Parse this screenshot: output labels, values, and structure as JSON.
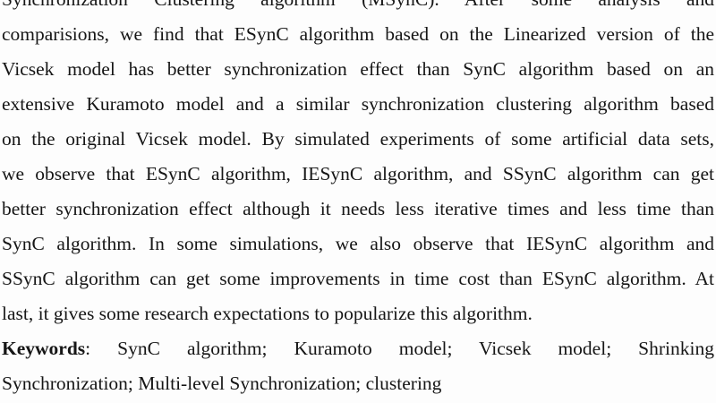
{
  "page": {
    "background_color": "#fdfdfd",
    "text_color": "#161616"
  },
  "document": {
    "kind": "paper-abstract-excerpt",
    "abstract_lines": [
      "Synchronization Clustering algorithm (MSynC). After some analysis and",
      "comparisions, we find that ESynC algorithm based on the Linearized version of the",
      "Vicsek model has better synchronization effect than SynC algorithm based on an",
      "extensive Kuramoto model and a similar synchronization clustering algorithm based",
      "on the original Vicsek model. By simulated experiments of some artificial data sets,",
      "we observe that ESynC algorithm, IESynC algorithm, and SSynC algorithm can get",
      "better synchronization effect although it needs less iterative times and less time than",
      "SynC algorithm. In some simulations, we also observe that IESynC algorithm and",
      "SSynC algorithm can get some improvements in time cost than ESynC algorithm. At",
      "last, it gives some research expectations to popularize this algorithm."
    ],
    "keywords": {
      "label": "Keywords",
      "rest": ": SynC algorithm; Kuramoto model; Vicsek model; Shrinking",
      "line2": "Synchronization; Multi-level Synchronization; clustering"
    }
  }
}
